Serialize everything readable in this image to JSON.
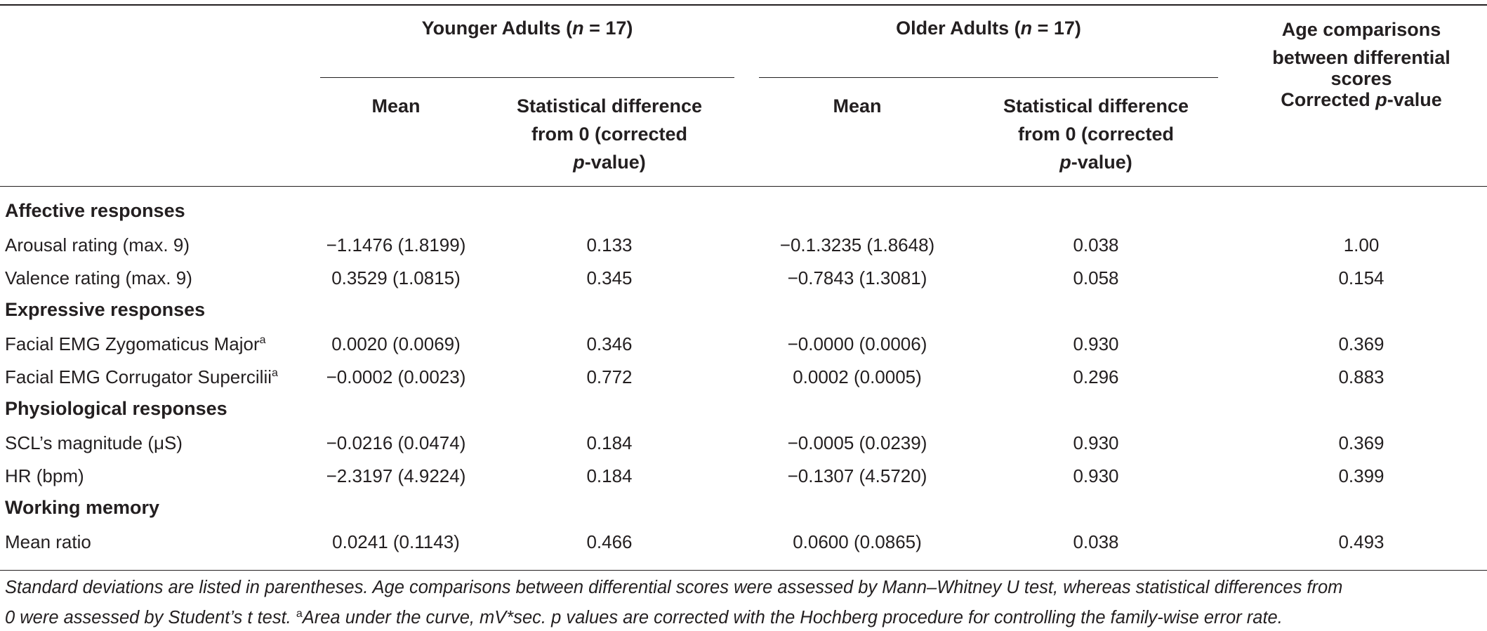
{
  "header": {
    "younger_group": "Younger Adults (",
    "older_group": "Older Adults (",
    "n_italic": "n",
    "n_rest": " = 17)",
    "col_mean": "Mean",
    "col_stat_diff_line1": "Statistical difference",
    "col_stat_diff_line2": "from 0 (corrected",
    "col_stat_diff_p": "p",
    "col_stat_diff_line3": "-value)",
    "age_comp_line1": "Age comparisons",
    "age_comp_line2": "between differential",
    "age_comp_line3": "scores",
    "age_comp_line4_pre": "Corrected ",
    "age_comp_line4_p": "p",
    "age_comp_line4_post": "-value"
  },
  "sections": [
    {
      "title": "Affective responses",
      "rows": [
        {
          "label": "Arousal rating (max. 9)",
          "sup": "",
          "y_mean": "−1.1476 (1.8199)",
          "y_p": "0.133",
          "o_mean": "−0.1.3235 (1.8648)",
          "o_p": "0.038",
          "age_p": "1.00"
        },
        {
          "label": "Valence rating (max. 9)",
          "sup": "",
          "y_mean": "0.3529 (1.0815)",
          "y_p": "0.345",
          "o_mean": "−0.7843 (1.3081)",
          "o_p": "0.058",
          "age_p": "0.154"
        }
      ]
    },
    {
      "title": "Expressive responses",
      "rows": [
        {
          "label": "Facial EMG Zygomaticus Major",
          "sup": "a",
          "y_mean": "0.0020 (0.0069)",
          "y_p": "0.346",
          "o_mean": "−0.0000 (0.0006)",
          "o_p": "0.930",
          "age_p": "0.369"
        },
        {
          "label": "Facial EMG Corrugator Supercilii",
          "sup": "a",
          "y_mean": "−0.0002 (0.0023)",
          "y_p": "0.772",
          "o_mean": "0.0002 (0.0005)",
          "o_p": "0.296",
          "age_p": "0.883"
        }
      ]
    },
    {
      "title": "Physiological responses",
      "rows": [
        {
          "label": "SCL’s magnitude (μS)",
          "sup": "",
          "y_mean": "−0.0216 (0.0474)",
          "y_p": "0.184",
          "o_mean": "−0.0005 (0.0239)",
          "o_p": "0.930",
          "age_p": "0.369"
        },
        {
          "label": "HR (bpm)",
          "sup": "",
          "y_mean": "−2.3197 (4.9224)",
          "y_p": "0.184",
          "o_mean": "−0.1307 (4.5720)",
          "o_p": "0.930",
          "age_p": "0.399"
        }
      ]
    },
    {
      "title": "Working memory",
      "rows": [
        {
          "label": "Mean ratio",
          "sup": "",
          "y_mean": "0.0241 (0.1143)",
          "y_p": "0.466",
          "o_mean": "0.0600 (0.0865)",
          "o_p": "0.038",
          "age_p": "0.493"
        }
      ]
    }
  ],
  "footnote": {
    "line1": "Standard deviations are listed in parentheses. Age comparisons between differential scores were assessed by Mann–Whitney U test, whereas statistical differences from",
    "line2_pre": "0 were assessed by Student’s t test. ",
    "line2_sup": "a",
    "line2_post": "Area under the curve, mV*sec. p values are corrected with the Hochberg procedure for controlling the family-wise error rate."
  }
}
